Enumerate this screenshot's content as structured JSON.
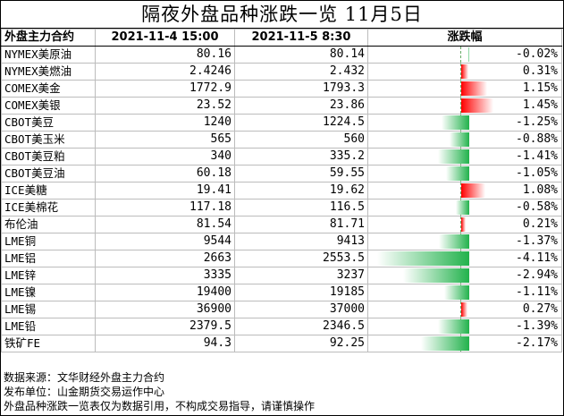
{
  "title": "隔夜外盘品种涨跌一览 11月5日",
  "headers": {
    "name": "外盘主力合约",
    "date1": "2021-11-4 15:00",
    "date2": "2021-11-5 8:30",
    "change": "涨跌幅"
  },
  "rows": [
    {
      "name": "NYMEX美原油",
      "p1": "80.16",
      "p2": "80.14",
      "pct": "-0.02%",
      "value": -0.02
    },
    {
      "name": "NYMEX美燃油",
      "p1": "2.4246",
      "p2": "2.432",
      "pct": "0.31%",
      "value": 0.31
    },
    {
      "name": "COMEX美金",
      "p1": "1772.9",
      "p2": "1793.3",
      "pct": "1.15%",
      "value": 1.15
    },
    {
      "name": "COMEX美银",
      "p1": "23.52",
      "p2": "23.86",
      "pct": "1.45%",
      "value": 1.45
    },
    {
      "name": "CBOT美豆",
      "p1": "1240",
      "p2": "1224.5",
      "pct": "-1.25%",
      "value": -1.25
    },
    {
      "name": "CBOT美玉米",
      "p1": "565",
      "p2": "560",
      "pct": "-0.88%",
      "value": -0.88
    },
    {
      "name": "CBOT美豆粕",
      "p1": "340",
      "p2": "335.2",
      "pct": "-1.41%",
      "value": -1.41
    },
    {
      "name": "CBOT美豆油",
      "p1": "60.18",
      "p2": "59.55",
      "pct": "-1.05%",
      "value": -1.05
    },
    {
      "name": "ICE美糖",
      "p1": "19.41",
      "p2": "19.62",
      "pct": "1.08%",
      "value": 1.08
    },
    {
      "name": "ICE美棉花",
      "p1": "117.18",
      "p2": "116.5",
      "pct": "-0.58%",
      "value": -0.58
    },
    {
      "name": "布伦油",
      "p1": "81.54",
      "p2": "81.71",
      "pct": "0.21%",
      "value": 0.21
    },
    {
      "name": "LME铜",
      "p1": "9544",
      "p2": "9413",
      "pct": "-1.37%",
      "value": -1.37
    },
    {
      "name": "LME铝",
      "p1": "2663",
      "p2": "2553.5",
      "pct": "-4.11%",
      "value": -4.11
    },
    {
      "name": "LME锌",
      "p1": "3335",
      "p2": "3237",
      "pct": "-2.94%",
      "value": -2.94
    },
    {
      "name": "LME镍",
      "p1": "19400",
      "p2": "19185",
      "pct": "-1.11%",
      "value": -1.11
    },
    {
      "name": "LME锡",
      "p1": "36900",
      "p2": "37000",
      "pct": "0.27%",
      "value": 0.27
    },
    {
      "name": "LME铅",
      "p1": "2379.5",
      "p2": "2346.5",
      "pct": "-1.39%",
      "value": -1.39
    },
    {
      "name": "铁矿FE",
      "p1": "94.3",
      "p2": "92.25",
      "pct": "-2.17%",
      "value": -2.17
    }
  ],
  "footer": [
    "数据来源：文华财经外盘主力合约",
    "发布单位：山金期货交易运作中心",
    "外盘品种涨跌一览表仅为数据引用，不构成交易指导，请谨慎操作"
  ],
  "colors": {
    "up": "#ff0000",
    "down": "#22b24c"
  }
}
